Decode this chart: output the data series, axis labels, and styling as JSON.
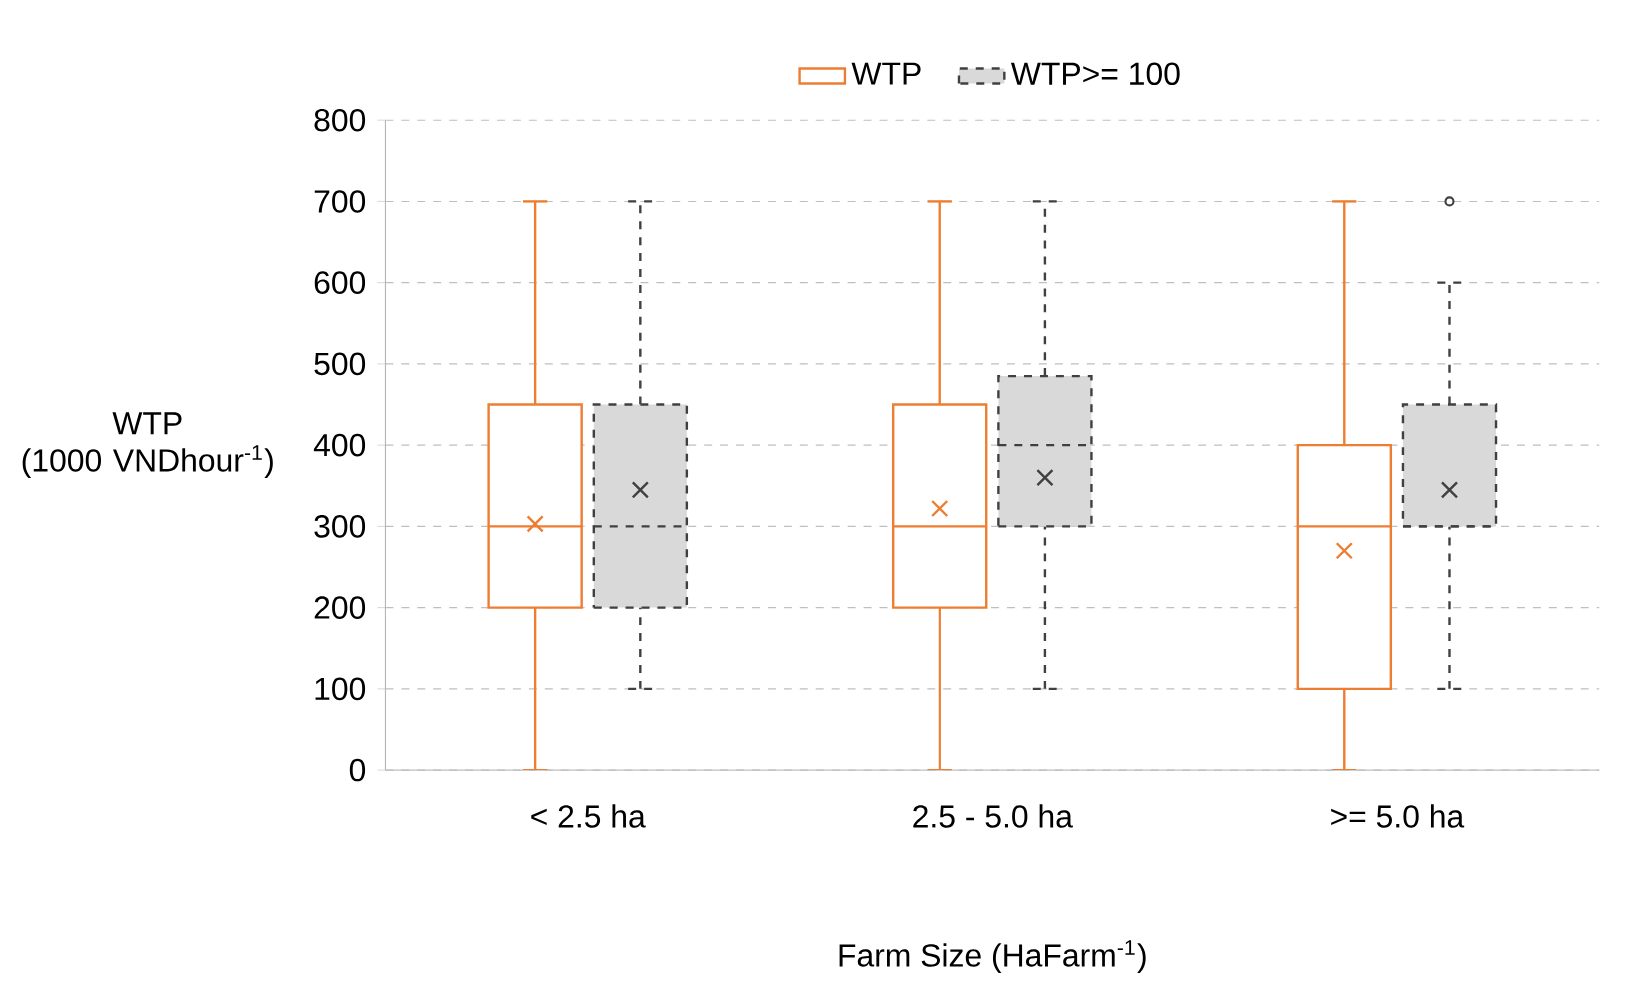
{
  "chart_data": {
    "type": "box",
    "xlabel": "Farm Size (HaFarm$^{-1}$)",
    "ylabel": "WTP (1000 VNDhour$^{-1}$)",
    "categories": [
      "< 2.5 ha",
      "2.5 - 5.0 ha",
      ">= 5.0 ha"
    ],
    "ylim": [
      0,
      800
    ],
    "yticks": [
      0,
      100,
      200,
      300,
      400,
      500,
      600,
      700,
      800
    ],
    "grid": "y",
    "legend": "top",
    "series": [
      {
        "name": "WTP",
        "color": "#ed7d31",
        "line_style": "solid",
        "boxes": [
          {
            "low": 0,
            "q1": 200,
            "median": 300,
            "q3": 450,
            "high": 700,
            "mean": 303
          },
          {
            "low": 0,
            "q1": 200,
            "median": 300,
            "q3": 450,
            "high": 700,
            "mean": 322
          },
          {
            "low": 0,
            "q1": 100,
            "median": 300,
            "q3": 400,
            "high": 700,
            "mean": 270
          }
        ]
      },
      {
        "name": "WTP>= 100",
        "color": "#d9d9d9",
        "line_style": "dashed",
        "boxes": [
          {
            "low": 100,
            "q1": 200,
            "median": 300,
            "q3": 450,
            "high": 700,
            "mean": 345
          },
          {
            "low": 100,
            "q1": 300,
            "median": 400,
            "q3": 485,
            "high": 700,
            "mean": 360
          },
          {
            "low": 100,
            "q1": 300,
            "median": 300,
            "q3": 450,
            "high": 600,
            "mean": 345,
            "outliers": [
              700
            ]
          }
        ]
      }
    ]
  }
}
